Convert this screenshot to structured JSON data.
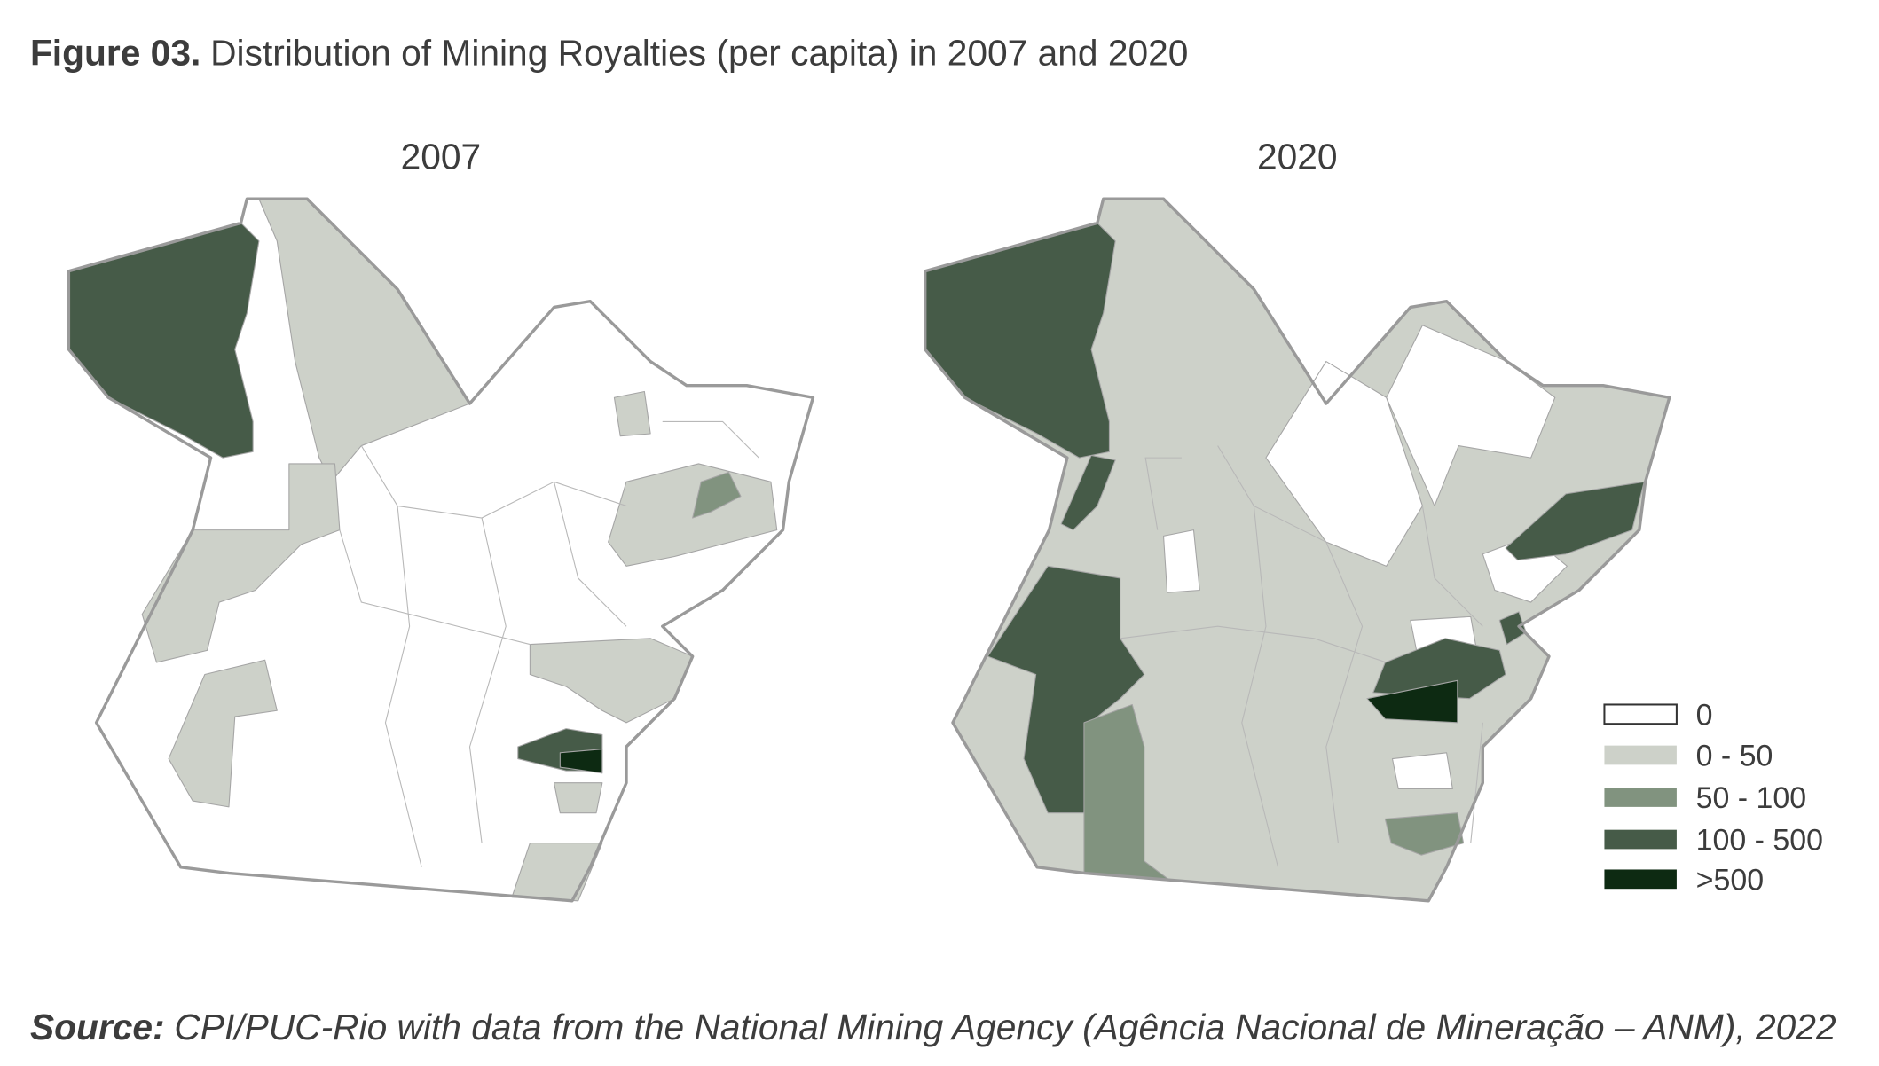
{
  "header": {
    "label": "Figure 03.",
    "text": "Distribution of Mining Royalties (per capita) in 2007 and 2020"
  },
  "maps": [
    {
      "title": "2007"
    },
    {
      "title": "2020"
    }
  ],
  "legend": [
    {
      "label": "0",
      "color": "#ffffff"
    },
    {
      "label": "0 - 50",
      "color": "#cdd1c9"
    },
    {
      "label": "50 - 100",
      "color": "#81937f"
    },
    {
      "label": "100 - 500",
      "color": "#465b48"
    },
    {
      "label": ">500",
      "color": "#0d2a12"
    }
  ],
  "source": {
    "label": "Source:",
    "text": "CPI/PUC-Rio with data from the National Mining Agency (Agência Nacional de Mineração – ANM), 2022"
  }
}
